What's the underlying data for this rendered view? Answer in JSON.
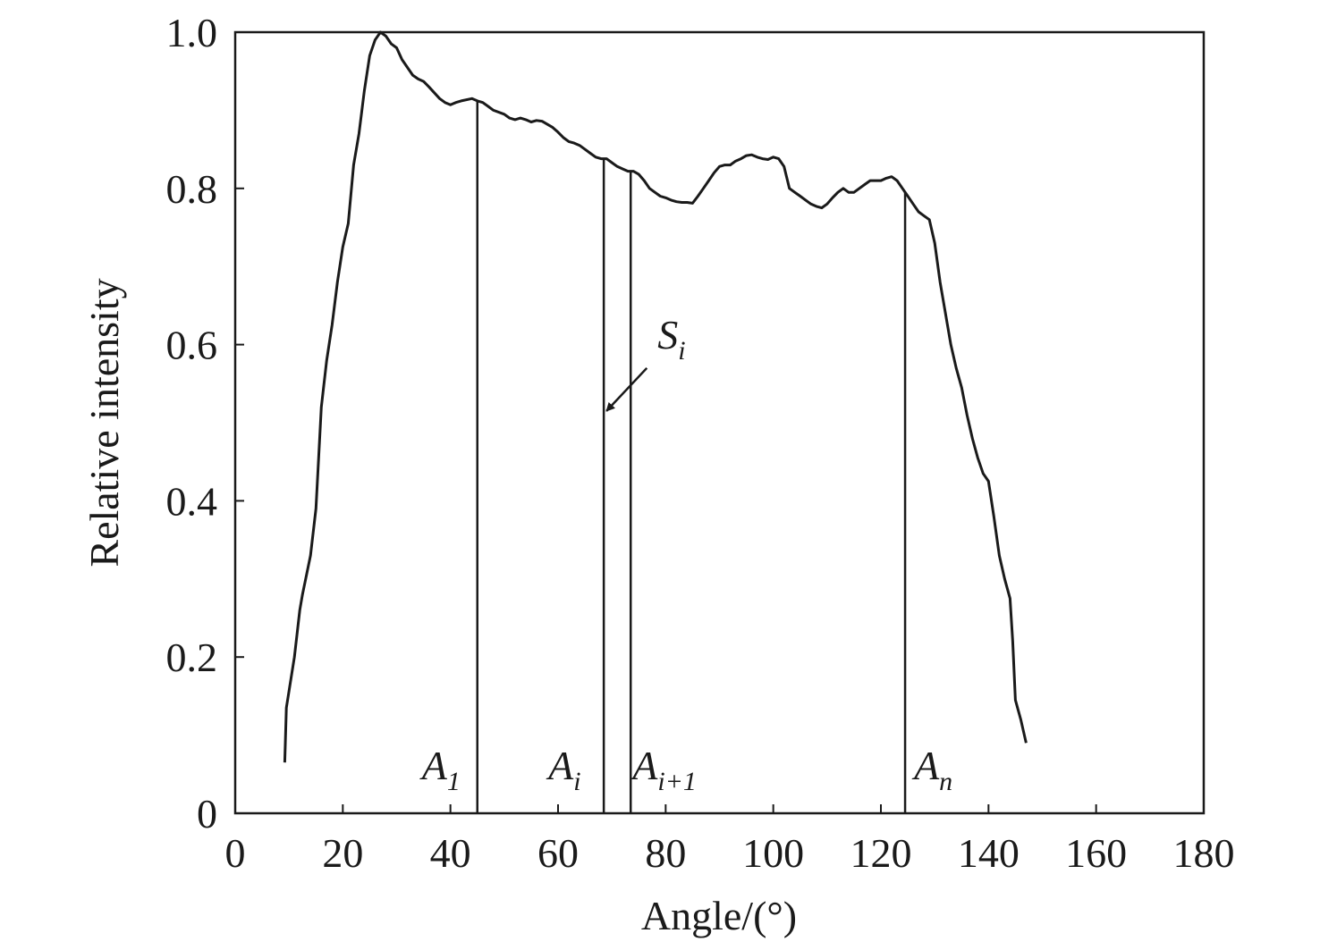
{
  "chart_data": {
    "type": "line",
    "xlabel": "Angle/(°)",
    "ylabel": "Relative intensity",
    "xlim": [
      0,
      180
    ],
    "ylim": [
      0,
      1.0
    ],
    "x_ticks": [
      {
        "value": 0,
        "label": "0"
      },
      {
        "value": 20,
        "label": "20"
      },
      {
        "value": 40,
        "label": "40"
      },
      {
        "value": 60,
        "label": "60"
      },
      {
        "value": 80,
        "label": "80"
      },
      {
        "value": 100,
        "label": "100"
      },
      {
        "value": 120,
        "label": "120"
      },
      {
        "value": 140,
        "label": "140"
      },
      {
        "value": 160,
        "label": "160"
      },
      {
        "value": 180,
        "label": "180"
      }
    ],
    "y_ticks": [
      {
        "value": 0,
        "label": "0"
      },
      {
        "value": 0.2,
        "label": "0.2"
      },
      {
        "value": 0.4,
        "label": "0.4"
      },
      {
        "value": 0.6,
        "label": "0.6"
      },
      {
        "value": 0.8,
        "label": "0.8"
      },
      {
        "value": 1.0,
        "label": "1.0"
      }
    ],
    "grid": false,
    "series": [
      {
        "x": [
          9.2,
          9.5,
          11,
          12,
          12.5,
          14,
          15,
          16,
          17,
          18,
          19,
          20,
          21,
          22,
          23,
          24,
          25,
          26,
          27,
          28,
          29,
          30,
          31,
          33,
          34,
          35,
          36,
          38,
          39,
          40,
          41,
          42,
          44,
          45,
          46,
          47,
          48,
          50,
          51,
          52,
          53,
          54,
          55,
          56,
          57,
          58,
          59,
          60,
          61,
          62,
          63,
          64,
          65,
          66,
          67,
          68,
          69,
          70,
          71,
          72,
          73,
          74,
          75,
          76,
          77,
          78,
          79,
          80,
          81,
          82,
          83,
          84,
          85,
          86,
          87,
          88,
          89,
          90,
          91,
          92,
          93,
          94,
          95,
          96,
          97,
          98,
          99,
          100,
          101,
          102,
          103,
          104,
          105,
          106,
          107,
          108,
          109,
          110,
          111,
          112,
          113,
          114,
          115,
          116,
          117,
          118,
          119,
          120,
          121,
          122,
          123,
          124,
          125,
          126,
          127,
          128,
          129,
          130,
          131,
          132,
          133,
          134,
          135,
          136,
          137,
          138,
          139,
          140,
          141,
          142,
          143,
          144,
          144.5,
          145,
          146,
          147
        ],
        "y": [
          0.065,
          0.135,
          0.2,
          0.26,
          0.28,
          0.33,
          0.39,
          0.52,
          0.58,
          0.625,
          0.68,
          0.725,
          0.755,
          0.83,
          0.87,
          0.925,
          0.97,
          0.99,
          1.0,
          0.995,
          0.985,
          0.98,
          0.965,
          0.945,
          0.94,
          0.937,
          0.93,
          0.915,
          0.91,
          0.907,
          0.91,
          0.912,
          0.915,
          0.912,
          0.91,
          0.905,
          0.9,
          0.895,
          0.89,
          0.888,
          0.89,
          0.888,
          0.885,
          0.887,
          0.886,
          0.882,
          0.878,
          0.872,
          0.865,
          0.86,
          0.858,
          0.855,
          0.85,
          0.845,
          0.84,
          0.838,
          0.838,
          0.833,
          0.828,
          0.825,
          0.822,
          0.822,
          0.818,
          0.81,
          0.8,
          0.795,
          0.79,
          0.788,
          0.785,
          0.783,
          0.782,
          0.782,
          0.781,
          0.79,
          0.8,
          0.81,
          0.82,
          0.828,
          0.83,
          0.83,
          0.835,
          0.838,
          0.842,
          0.843,
          0.84,
          0.838,
          0.837,
          0.84,
          0.838,
          0.828,
          0.8,
          0.795,
          0.79,
          0.785,
          0.78,
          0.777,
          0.775,
          0.78,
          0.788,
          0.795,
          0.8,
          0.795,
          0.795,
          0.8,
          0.805,
          0.81,
          0.81,
          0.81,
          0.813,
          0.815,
          0.81,
          0.8,
          0.79,
          0.78,
          0.77,
          0.765,
          0.76,
          0.73,
          0.68,
          0.64,
          0.6,
          0.57,
          0.545,
          0.51,
          0.48,
          0.455,
          0.435,
          0.425,
          0.38,
          0.33,
          0.3,
          0.275,
          0.22,
          0.145,
          0.12,
          0.09
        ]
      }
    ],
    "vertical_markers": [
      {
        "x": 45,
        "label": "A",
        "sub": "1",
        "sub_italic": false
      },
      {
        "x": 68.5,
        "label": "A",
        "sub": "i",
        "sub_italic": true
      },
      {
        "x": 73.5,
        "label": "A",
        "sub": "i+1",
        "sub_italic": false
      },
      {
        "x": 124.5,
        "label": "A",
        "sub": "n",
        "sub_italic": true
      }
    ],
    "annotations": [
      {
        "label": "S",
        "sub": "i",
        "text_x": 78.5,
        "text_y": 0.595,
        "arrow_from": [
          76.5,
          0.57
        ],
        "arrow_to": [
          69,
          0.515
        ]
      }
    ]
  }
}
